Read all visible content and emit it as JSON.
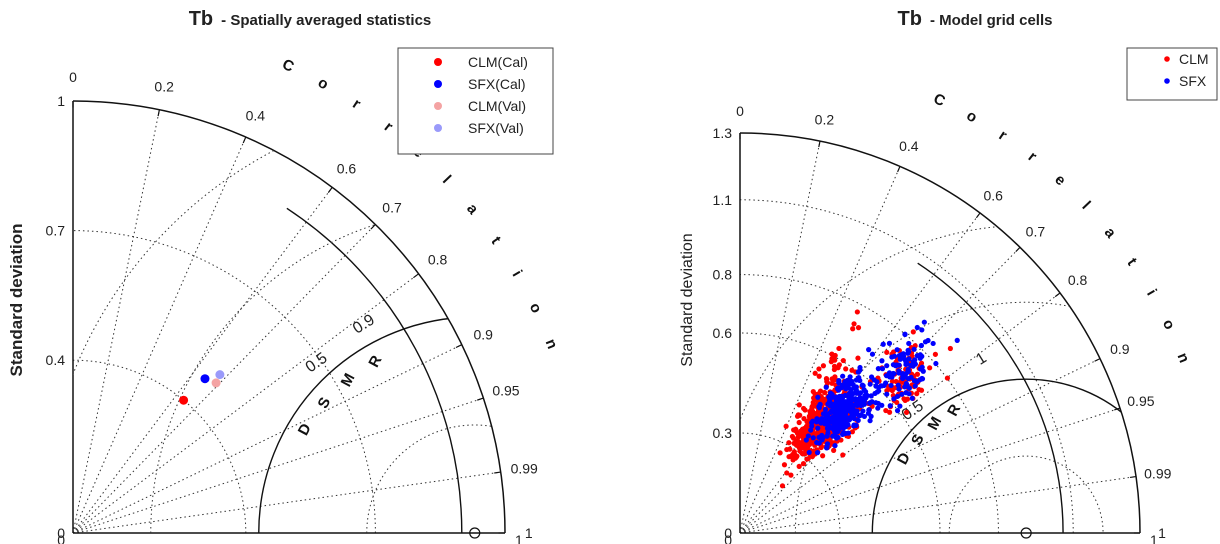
{
  "chart_data": [
    {
      "type": "scatter",
      "subtype": "taylor-diagram",
      "title_main": "Tb",
      "title_sub": "- Spatially averaged statistics",
      "ylabel": "Standard deviation",
      "ylabel_bold": true,
      "arc_label": "Correlation",
      "rmsd_label": "RMSD",
      "std_max": 1,
      "std_ticks": [
        {
          "value": 0,
          "label": "0"
        },
        {
          "value": 0.4,
          "label": "0.4"
        },
        {
          "value": 0.7,
          "label": "0.7"
        },
        {
          "value": 1,
          "label": "1"
        }
      ],
      "correlation_ticks": [
        "0",
        "0.2",
        "0.4",
        "0.6",
        "0.7",
        "0.8",
        "0.9",
        "0.95",
        "0.99",
        "1"
      ],
      "correlation_values": [
        0,
        0.2,
        0.4,
        0.6,
        0.7,
        0.8,
        0.9,
        0.95,
        0.99,
        1
      ],
      "std_contours": [
        {
          "value": 0.9,
          "label": "0.9"
        }
      ],
      "rmsd_contours": [
        {
          "value": 0.5,
          "label": "0.5"
        }
      ],
      "reference_std": 0.93,
      "marker_size": 4.5,
      "series": [
        {
          "name": "CLM(Cal)",
          "color": "#ff0000",
          "points": [
            {
              "std": 0.4,
              "corr": 0.64
            }
          ]
        },
        {
          "name": "SFX(Cal)",
          "color": "#0000ff",
          "points": [
            {
              "std": 0.47,
              "corr": 0.65
            }
          ]
        },
        {
          "name": "CLM(Val)",
          "color": "#f4a3a3",
          "points": [
            {
              "std": 0.48,
              "corr": 0.69
            }
          ]
        },
        {
          "name": "SFX(Val)",
          "color": "#9a9afa",
          "points": [
            {
              "std": 0.5,
              "corr": 0.68
            }
          ]
        }
      ]
    },
    {
      "type": "scatter",
      "subtype": "taylor-diagram",
      "title_main": "Tb",
      "title_sub": "- Model grid cells",
      "ylabel": "Standard deviation",
      "ylabel_bold": false,
      "arc_label": "Correlation",
      "rmsd_label": "RMSD",
      "std_max": 1.3,
      "std_ticks": [
        {
          "value": 0,
          "label": "0"
        },
        {
          "value": 0.325,
          "label": "0.3"
        },
        {
          "value": 0.65,
          "label": "0.6"
        },
        {
          "value": 0.84,
          "label": "0.8"
        },
        {
          "value": 1.083,
          "label": "1.1"
        },
        {
          "value": 1.3,
          "label": "1.3"
        }
      ],
      "correlation_ticks": [
        "0",
        "0.2",
        "0.4",
        "0.6",
        "0.7",
        "0.8",
        "0.9",
        "0.95",
        "0.99",
        "1"
      ],
      "correlation_values": [
        0,
        0.2,
        0.4,
        0.6,
        0.7,
        0.8,
        0.9,
        0.95,
        0.99,
        1
      ],
      "std_contours": [
        {
          "value": 1.05,
          "label": "1"
        }
      ],
      "rmsd_contours": [
        {
          "value": 0.5,
          "label": "0.5"
        }
      ],
      "reference_std": 0.93,
      "marker_size": 2.6,
      "series": [
        {
          "name": "CLM",
          "color": "#ff0000",
          "cloud": [
            {
              "n": 520,
              "std_mean": 0.45,
              "std_sd": 0.07,
              "corr_mean": 0.6,
              "corr_sd": 0.06
            },
            {
              "n": 90,
              "std_mean": 0.72,
              "std_sd": 0.06,
              "corr_mean": 0.72,
              "corr_sd": 0.04
            },
            {
              "n": 40,
              "std_mean": 0.6,
              "std_sd": 0.1,
              "corr_mean": 0.5,
              "corr_sd": 0.05
            }
          ]
        },
        {
          "name": "SFX",
          "color": "#0000ff",
          "cloud": [
            {
              "n": 320,
              "std_mean": 0.52,
              "std_sd": 0.06,
              "corr_mean": 0.64,
              "corr_sd": 0.05
            },
            {
              "n": 110,
              "std_mean": 0.76,
              "std_sd": 0.07,
              "corr_mean": 0.7,
              "corr_sd": 0.04
            }
          ]
        }
      ]
    }
  ]
}
